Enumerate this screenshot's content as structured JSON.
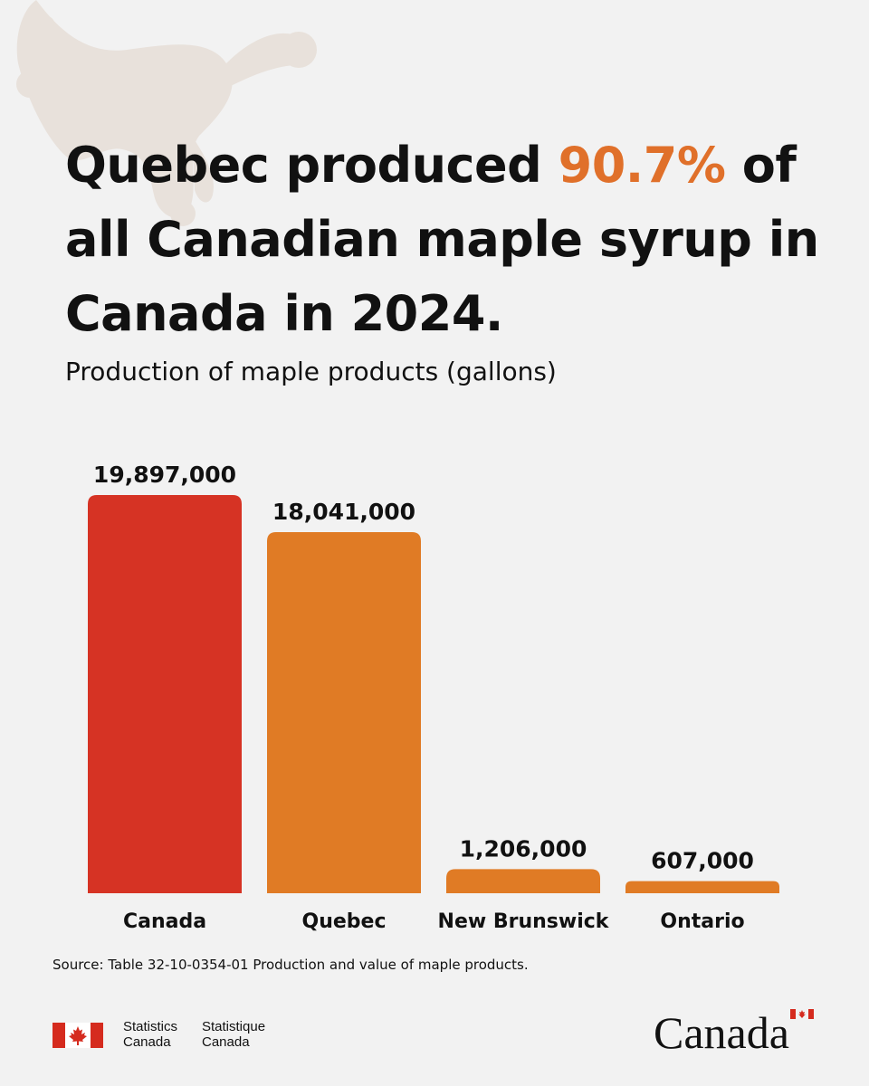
{
  "headline": {
    "before": "Quebec produced ",
    "highlight": "90.7%",
    "after": " of all Canadian maple syrup in Canada in 2024."
  },
  "colors": {
    "background": "#f2f2f2",
    "highlight": "#e0702a",
    "bar_total": "#d63324",
    "bar_province": "#e07b25",
    "splash": "#e8e1db"
  },
  "chart_data": {
    "type": "bar",
    "title": "Production of maple products (gallons)",
    "categories": [
      "Canada",
      "Quebec",
      "New Brunswick",
      "Ontario"
    ],
    "values": [
      19897000,
      18041000,
      1206000,
      607000
    ],
    "value_labels": [
      "19,897,000",
      "18,041,000",
      "1,206,000",
      "607,000"
    ],
    "bar_colors": [
      "#d63324",
      "#e07b25",
      "#e07b25",
      "#e07b25"
    ],
    "xlabel": "",
    "ylabel": "",
    "ylim": [
      0,
      19897000
    ],
    "grid": false,
    "legend": "none"
  },
  "source": "Source: Table 32-10-0354-01 Production and value of maple products.",
  "footer": {
    "signature_en": [
      "Statistics",
      "Canada"
    ],
    "signature_fr": [
      "Statistique",
      "Canada"
    ],
    "wordmark": "Canada",
    "flag_icon": "canada-flag-icon"
  }
}
